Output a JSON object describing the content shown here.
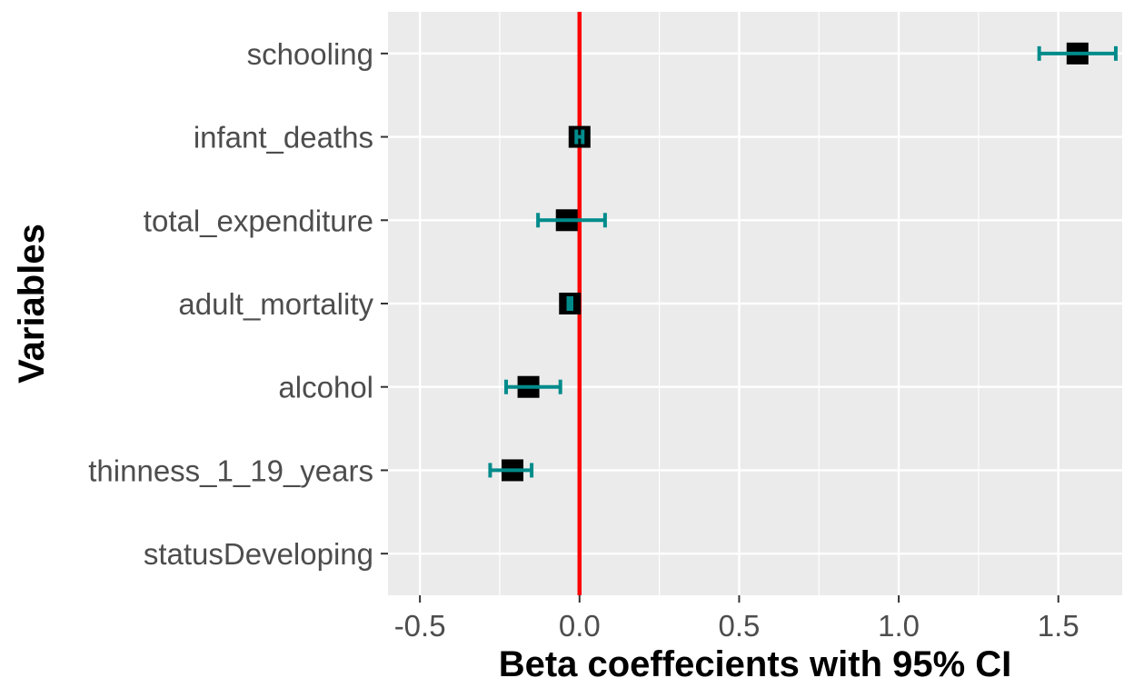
{
  "chart_data": {
    "type": "forest",
    "title": "",
    "xlabel": "Beta coeffecients with 95% CI",
    "ylabel": "Variables",
    "xlim": [
      -0.6,
      1.7
    ],
    "xticks": [
      -0.5,
      0.0,
      0.5,
      1.0,
      1.5
    ],
    "xtick_labels": [
      "-0.5",
      "0.0",
      "0.5",
      "1.0",
      "1.5"
    ],
    "reference_line": 0,
    "grid": true,
    "categories": [
      "schooling",
      "infant_deaths",
      "total_expenditure",
      "adult_mortality",
      "alcohol",
      "thinness_1_19_years",
      "statusDeveloping"
    ],
    "estimates": [
      1.56,
      0.0,
      -0.04,
      -0.03,
      -0.16,
      -0.21,
      null
    ],
    "ci_lower": [
      1.44,
      -0.01,
      -0.13,
      -0.035,
      -0.23,
      -0.28,
      null
    ],
    "ci_upper": [
      1.68,
      0.01,
      0.08,
      -0.025,
      -0.06,
      -0.15,
      null
    ],
    "colors": {
      "panel": "#ebebeb",
      "grid": "#ffffff",
      "ci": "#008b8b",
      "point": "#000000",
      "reference": "#ff0000",
      "tick_text": "#4d4d4d"
    }
  }
}
